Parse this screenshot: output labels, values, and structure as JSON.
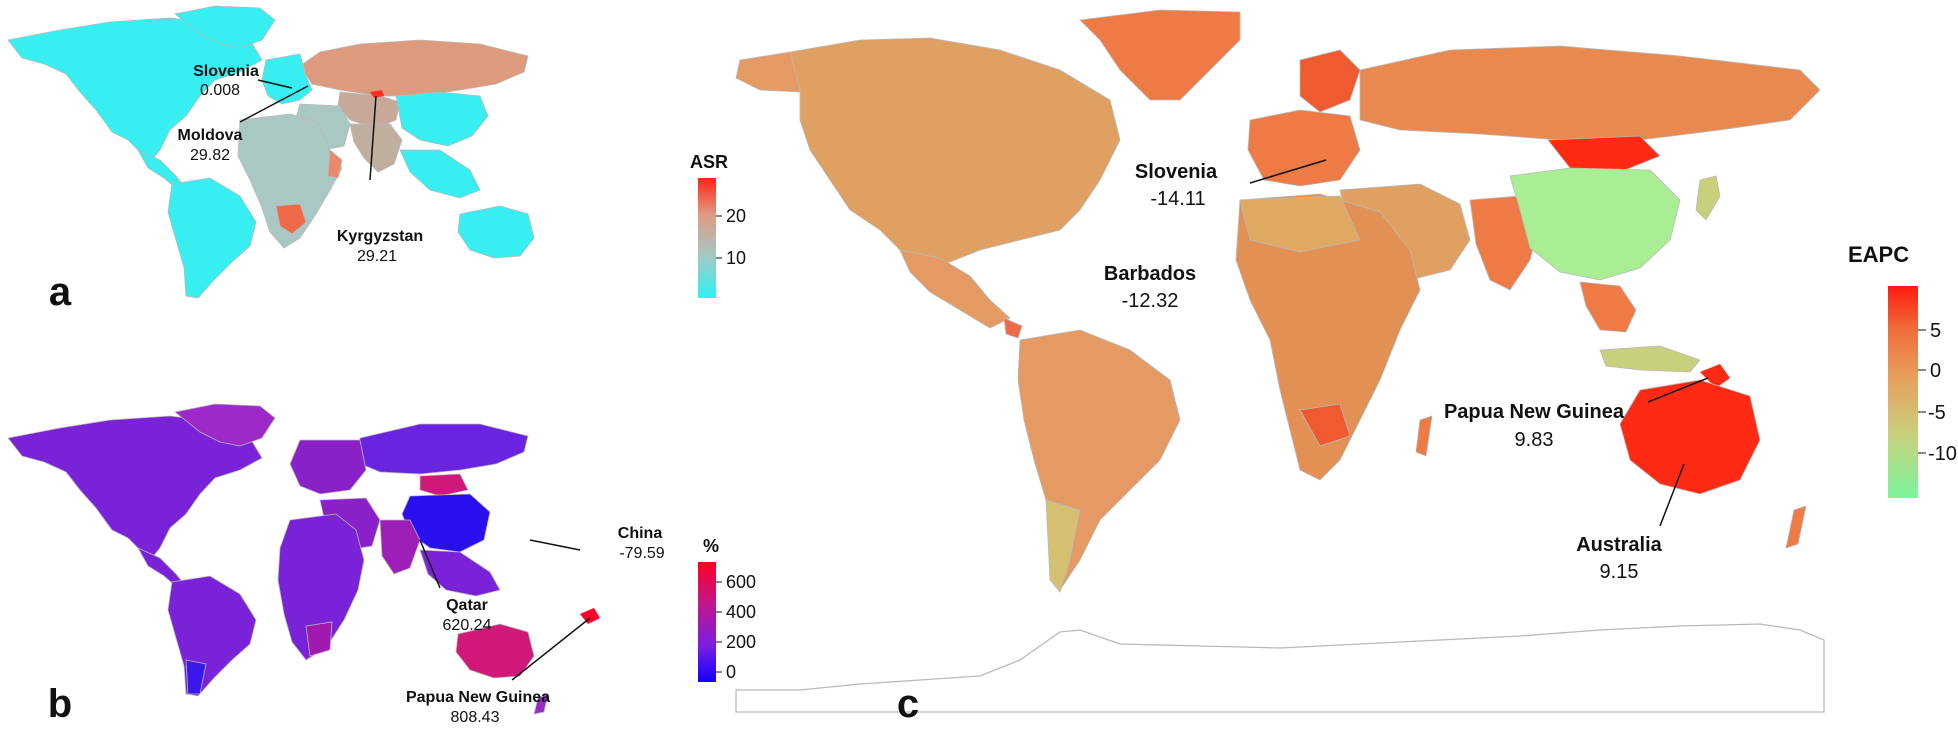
{
  "panels": {
    "a": {
      "letter": "a",
      "legend": {
        "title": "ASR",
        "ticks": [
          "20",
          "10"
        ],
        "colors": [
          "#2cf0f0",
          "#9fc9c6",
          "#d79b80",
          "#ff2a1f"
        ]
      },
      "labels": [
        {
          "name": "Slovenia",
          "value": "0.008"
        },
        {
          "name": "Moldova",
          "value": "29.82"
        },
        {
          "name": "Kyrgyzstan",
          "value": "29.21"
        }
      ]
    },
    "b": {
      "letter": "b",
      "legend": {
        "title": "%",
        "ticks": [
          "600",
          "400",
          "200",
          "0"
        ],
        "colors": [
          "#1500ff",
          "#7a1cde",
          "#c0148a",
          "#ff0028"
        ]
      },
      "labels": [
        {
          "name": "China",
          "value": "-79.59"
        },
        {
          "name": "Qatar",
          "value": "620.24"
        },
        {
          "name": "Papua New Guinea",
          "value": "808.43"
        }
      ]
    },
    "c": {
      "letter": "c",
      "legend": {
        "title": "EAPC",
        "ticks": [
          "5",
          "0",
          "-5",
          "-10"
        ],
        "colors": [
          "#7ff59a",
          "#c9d07c",
          "#e9a060",
          "#ef6a3a",
          "#ff1a10"
        ]
      },
      "labels": [
        {
          "name": "Slovenia",
          "value": "-14.11"
        },
        {
          "name": "Barbados",
          "value": "-12.32"
        },
        {
          "name": "Papua New Guinea",
          "value": "9.83"
        },
        {
          "name": "Australia",
          "value": "9.15"
        }
      ]
    }
  },
  "colors": {
    "a_low": "#37eef0",
    "a_mid": "#a9c8c3",
    "a_russia": "#dd9a7c",
    "a_high": "#ff3020",
    "b_base": "#7a22d8",
    "b_pink": "#d0187a",
    "b_blue": "#2a10ee",
    "c_base": "#e59a63",
    "c_orange": "#ee7a45",
    "c_green": "#a9ee92",
    "c_tan": "#d9b26a",
    "c_red": "#ff2a14"
  }
}
